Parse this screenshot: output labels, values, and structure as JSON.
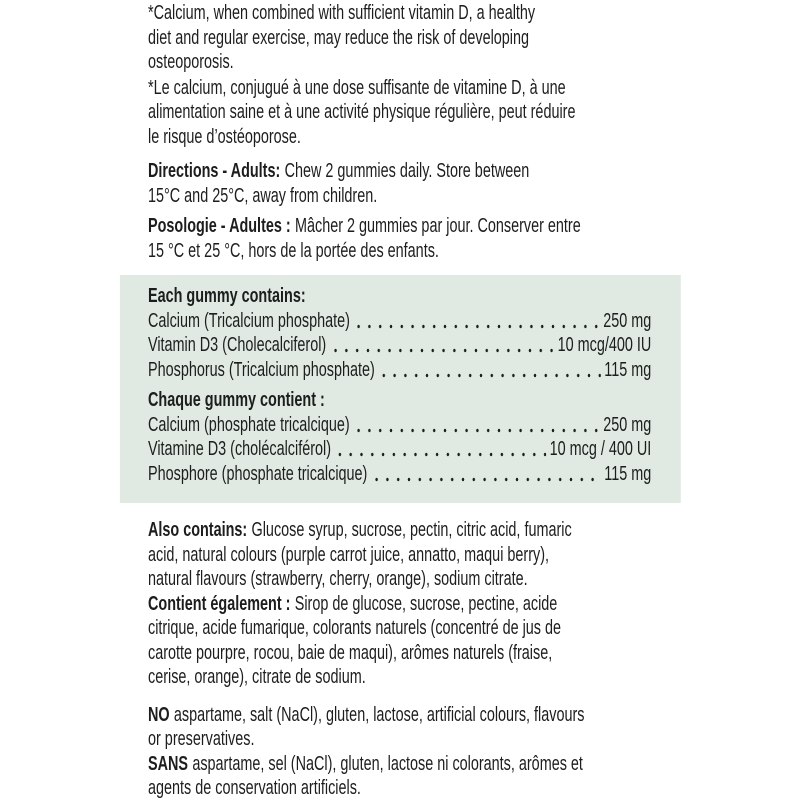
{
  "colors": {
    "background": "#ffffff",
    "text": "#1d1d1d",
    "facts_box_background": "#e0eae3"
  },
  "claims": {
    "en_lines": [
      "*Calcium, when combined with sufficient vitamin D, a healthy",
      "diet and regular exercise, may reduce the risk of developing",
      "osteoporosis."
    ],
    "fr_lines": [
      "*Le calcium, conjugué à une dose suffisante de vitamine D, à une",
      "alimentation saine et à une activité physique régulière, peut réduire",
      "le risque d’ostéoporose."
    ]
  },
  "directions": {
    "en_label": "Directions - Adults:",
    "en_lines": [
      "Chew 2 gummies daily. Store between",
      "15°C and 25°C, away from children."
    ],
    "fr_label": "Posologie - Adultes :",
    "fr_lines": [
      "Mâcher 2 gummies par jour. Conserver entre",
      "15 °C et 25 °C, hors de la portée des enfants."
    ]
  },
  "facts": {
    "en_heading": "Each gummy contains:",
    "en_rows": [
      {
        "label": "Calcium (Tricalcium phosphate)",
        "value": "250 mg"
      },
      {
        "label": "Vitamin D3 (Cholecalciferol)",
        "value": "10 mcg/400 IU"
      },
      {
        "label": "Phosphorus (Tricalcium phosphate)",
        "value": "115 mg"
      }
    ],
    "fr_heading": "Chaque gummy contient :",
    "fr_rows": [
      {
        "label": "Calcium (phosphate tricalcique)",
        "value": "250 mg"
      },
      {
        "label": "Vitamine D3 (cholécalciférol)",
        "value": "10 mcg / 400 UI"
      },
      {
        "label": "Phosphore (phosphate tricalcique)",
        "value": "115 mg"
      }
    ]
  },
  "other_ingredients": {
    "en_label": "Also contains:",
    "en_lines": [
      "Glucose syrup, sucrose, pectin, citric acid, fumaric",
      "acid, natural colours (purple carrot juice, annatto, maqui berry),",
      "natural flavours (strawberry, cherry, orange), sodium citrate."
    ],
    "fr_label": "Contient également :",
    "fr_lines": [
      "Sirop de glucose, sucrose, pectine, acide",
      "citrique, acide fumarique, colorants naturels (concentré de jus de",
      "carotte pourpre, rocou, baie de maqui), arômes naturels (fraise,",
      "cerise, orange), citrate de sodium."
    ]
  },
  "free_from": {
    "en_label": "NO",
    "en_lines": [
      "aspartame, salt (NaCl), gluten, lactose, artificial colours, flavours",
      "or preservatives."
    ],
    "fr_label": "SANS",
    "fr_lines": [
      "aspartame, sel (NaCl), gluten, lactose ni colorants, arômes et",
      "agents de conservation artificiels."
    ]
  }
}
